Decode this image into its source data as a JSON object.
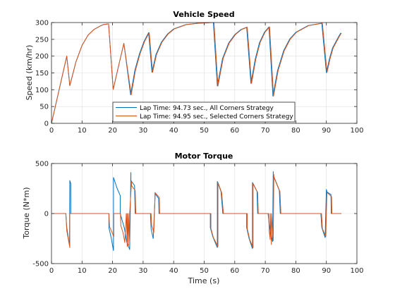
{
  "colors": {
    "all_corners": "#0072BD",
    "selected_corners": "#D95319",
    "grid": "#dfdfdf",
    "axis": "#262626"
  },
  "chart_data": [
    {
      "type": "line",
      "title": "Vehicle Speed",
      "xlabel": "",
      "ylabel": "Speed (km/hr)",
      "xlim": [
        0,
        100
      ],
      "ylim": [
        0,
        300
      ],
      "xticks": [
        0,
        10,
        20,
        30,
        40,
        50,
        60,
        70,
        80,
        90,
        100
      ],
      "yticks": [
        0,
        50,
        100,
        150,
        200,
        250,
        300
      ],
      "grid": true,
      "legend": "bottom-center",
      "series": [
        {
          "name": "Lap Time: 94.73 sec., All Corners Strategy",
          "color": "#0072BD",
          "x": [
            0,
            5,
            6,
            8,
            10,
            12,
            14,
            16,
            17,
            18.7,
            20.2,
            22.2,
            23.7,
            25.9,
            27.3,
            28.8,
            30.3,
            31.8,
            32.9,
            34.2,
            36,
            38,
            40,
            44,
            48,
            52,
            53,
            54.3,
            56,
            58,
            60,
            62,
            63.9,
            65.3,
            66.7,
            68.1,
            69.7,
            71.2,
            72.5,
            74,
            76,
            78,
            80,
            84,
            88.5,
            90,
            91,
            92,
            94,
            94.73
          ],
          "y": [
            0,
            200,
            112,
            183,
            232,
            263,
            280,
            290,
            294,
            296,
            101,
            180,
            238,
            85,
            158,
            207,
            244,
            270,
            152,
            205,
            242,
            266,
            281,
            294,
            298,
            300,
            300,
            111,
            193,
            239,
            264,
            279,
            286,
            119,
            191,
            240,
            271,
            287,
            81,
            157,
            216,
            251,
            271,
            291,
            298,
            151,
            192,
            224,
            258,
            269
          ]
        },
        {
          "name": "Lap Time: 94.95 sec., Selected Corners Strategy",
          "color": "#D95319",
          "x": [
            0,
            5,
            6,
            8,
            10,
            12,
            14,
            16,
            17,
            18.7,
            20.2,
            22.2,
            23.7,
            26.1,
            27.5,
            29,
            30.5,
            32,
            33.1,
            34.4,
            36.2,
            38.2,
            40.2,
            44.2,
            48.2,
            52.2,
            53.2,
            54.5,
            56.2,
            58.2,
            60.2,
            62.2,
            64.1,
            65.5,
            66.9,
            68.3,
            69.9,
            71.4,
            72.7,
            74.2,
            76.2,
            78.2,
            80.2,
            84.2,
            88.7,
            90.2,
            91.2,
            92.2,
            94.2,
            94.95
          ],
          "y": [
            0,
            200,
            112,
            183,
            232,
            263,
            280,
            290,
            294,
            296,
            101,
            180,
            238,
            85,
            158,
            207,
            244,
            270,
            152,
            205,
            242,
            266,
            281,
            294,
            298,
            300,
            300,
            111,
            193,
            239,
            264,
            279,
            286,
            119,
            191,
            240,
            271,
            287,
            81,
            157,
            216,
            251,
            271,
            291,
            298,
            151,
            192,
            224,
            258,
            269
          ]
        }
      ]
    },
    {
      "type": "line",
      "title": "Motor Torque",
      "xlabel": "Time (s)",
      "ylabel": "Torque (N*m)",
      "xlim": [
        0,
        100
      ],
      "ylim": [
        -500,
        500
      ],
      "xticks": [
        0,
        10,
        20,
        30,
        40,
        50,
        60,
        70,
        80,
        90,
        100
      ],
      "yticks": [
        -500,
        0,
        500
      ],
      "grid": true,
      "series": [
        {
          "name": "Lap Time: 94.73 sec., All Corners Strategy",
          "color": "#0072BD",
          "x": [
            0,
            4.7,
            5,
            5.9,
            6,
            6.3,
            6.3,
            7,
            18.8,
            18.8,
            19.6,
            20.3,
            20.3,
            21.5,
            22.5,
            22.5,
            23.9,
            24.6,
            25.6,
            26,
            26,
            27.2,
            27.4,
            27.4,
            32.4,
            32.6,
            33.3,
            33.9,
            33.9,
            35.1,
            35.2,
            35.2,
            52,
            52,
            52.8,
            54.3,
            54.3,
            55.5,
            56.1,
            56.1,
            63.9,
            63.9,
            64.7,
            65.8,
            65.8,
            67.3,
            67.5,
            67.5,
            70.9,
            71.4,
            72.4,
            72.6,
            72.6,
            74.6,
            74.9,
            74.9,
            88.2,
            88.5,
            89.6,
            90,
            90,
            91.5,
            91.6,
            91.6,
            94.73
          ],
          "y": [
            0,
            0,
            -140,
            -320,
            330,
            300,
            0,
            0,
            0,
            -140,
            -250,
            -370,
            360,
            250,
            180,
            0,
            -150,
            -280,
            -360,
            410,
            330,
            280,
            0,
            0,
            0,
            -150,
            -250,
            160,
            200,
            150,
            0,
            0,
            0,
            -140,
            -230,
            -340,
            320,
            220,
            0,
            0,
            0,
            -140,
            -250,
            -350,
            310,
            220,
            0,
            0,
            0,
            -140,
            -280,
            420,
            380,
            230,
            0,
            0,
            0,
            -140,
            -240,
            240,
            220,
            190,
            0,
            0,
            0
          ]
        },
        {
          "name": "Lap Time: 94.95 sec., Selected Corners Strategy",
          "color": "#D95319",
          "x": [
            0,
            4.7,
            5,
            6,
            6,
            18.8,
            19,
            20.4,
            20.4,
            21.6,
            22.6,
            22.7,
            23.5,
            24,
            24.5,
            24.8,
            24.8,
            25.2,
            25.2,
            25.6,
            25.6,
            26.2,
            26.2,
            27.4,
            27.6,
            27.6,
            32.6,
            32.8,
            33.5,
            33.9,
            33.9,
            35.3,
            35.4,
            35.4,
            52.2,
            52.2,
            53,
            54.5,
            54.5,
            55.7,
            56.3,
            56.3,
            64.1,
            64.1,
            64.9,
            66,
            66,
            67.5,
            67.7,
            67.7,
            71.1,
            71.3,
            71.6,
            71.6,
            72,
            72,
            72.6,
            72.8,
            72.8,
            74.8,
            75.1,
            75.1,
            88.4,
            88.7,
            89.8,
            90.2,
            90.2,
            91.7,
            91.8,
            91.8,
            94.95
          ],
          "y": [
            0,
            0,
            -170,
            -340,
            0,
            0,
            -130,
            -230,
            0,
            0,
            0,
            -120,
            -200,
            -290,
            0,
            -330,
            0,
            -320,
            0,
            -280,
            0,
            320,
            280,
            230,
            0,
            0,
            0,
            -120,
            -190,
            180,
            210,
            160,
            0,
            0,
            0,
            -150,
            -240,
            -330,
            310,
            210,
            0,
            0,
            0,
            -150,
            -260,
            -340,
            300,
            210,
            0,
            0,
            0,
            -180,
            -260,
            0,
            -310,
            0,
            -270,
            390,
            370,
            220,
            0,
            0,
            0,
            -150,
            -230,
            230,
            210,
            170,
            0,
            0,
            0
          ]
        }
      ]
    }
  ]
}
